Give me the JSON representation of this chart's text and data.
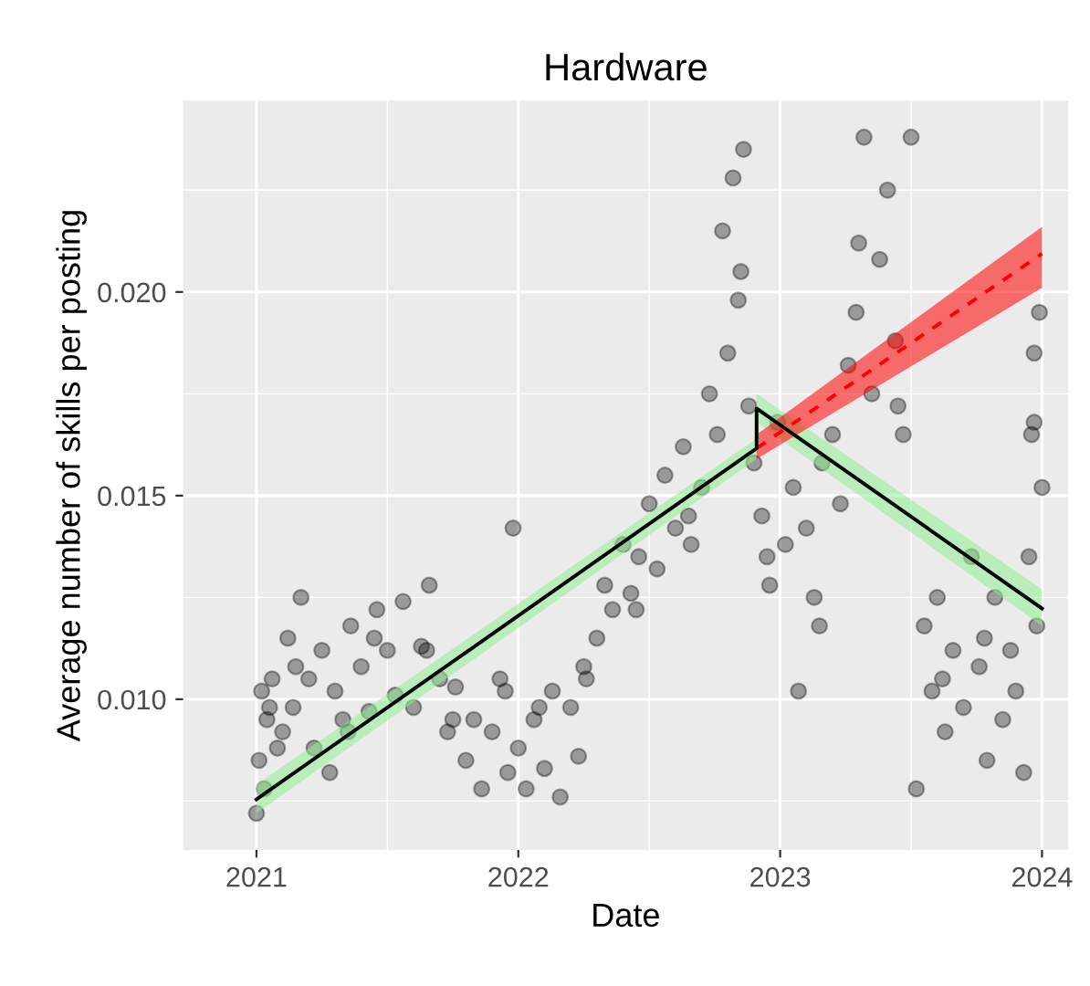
{
  "chart_data": {
    "type": "scatter",
    "title": "Hardware",
    "xlabel": "Date",
    "ylabel": "Average number of skills per posting",
    "xlim": [
      2020.72,
      2024.1
    ],
    "ylim": [
      0.0063,
      0.0247
    ],
    "xticks": [
      2021,
      2022,
      2023,
      2024
    ],
    "yticks": [
      {
        "value": 0.01,
        "label": "0.010"
      },
      {
        "value": 0.015,
        "label": "0.015"
      },
      {
        "value": 0.02,
        "label": "0.020"
      }
    ],
    "grid": true,
    "legend": false,
    "series": [
      {
        "marker": "circle",
        "color": "#000000",
        "x": [
          2021.0,
          2021.01,
          2021.02,
          2021.03,
          2021.04,
          2021.06,
          2021.08,
          2021.1,
          2021.12,
          2021.14,
          2021.17,
          2021.2,
          2021.22,
          2021.25,
          2021.28,
          2021.3,
          2021.33,
          2021.36,
          2021.4,
          2021.43,
          2021.46,
          2021.5,
          2021.53,
          2021.56,
          2021.6,
          2021.63,
          2021.66,
          2021.7,
          2021.73,
          2021.76,
          2021.8,
          2021.83,
          2021.86,
          2021.9,
          2021.93,
          2021.96,
          2021.98,
          2022.0,
          2022.03,
          2022.06,
          2022.1,
          2022.13,
          2022.16,
          2022.2,
          2022.23,
          2022.26,
          2022.3,
          2022.33,
          2022.36,
          2022.4,
          2022.43,
          2022.46,
          2022.5,
          2022.53,
          2022.56,
          2022.6,
          2022.63,
          2022.66,
          2022.7,
          2022.73,
          2022.76,
          2022.78,
          2022.8,
          2022.82,
          2022.84,
          2022.86,
          2022.88,
          2022.9,
          2022.93,
          2022.96,
          2022.99,
          2023.02,
          2023.05,
          2023.07,
          2023.1,
          2023.13,
          2023.16,
          2023.2,
          2023.23,
          2023.26,
          2023.29,
          2023.32,
          2023.35,
          2023.38,
          2023.41,
          2023.44,
          2023.47,
          2023.5,
          2023.52,
          2023.55,
          2023.58,
          2023.6,
          2023.63,
          2023.66,
          2023.7,
          2023.73,
          2023.76,
          2023.79,
          2023.82,
          2023.85,
          2023.88,
          2023.9,
          2023.93,
          2023.95,
          2023.96,
          2023.97,
          2023.98,
          2023.99,
          2024.0,
          2021.05,
          2021.15,
          2021.35,
          2021.45,
          2021.65,
          2021.75,
          2021.95,
          2022.08,
          2022.25,
          2022.45,
          2022.65,
          2022.85,
          2022.95,
          2023.15,
          2023.3,
          2023.45,
          2023.62,
          2023.78,
          2023.97
        ],
        "values": [
          0.0072,
          0.0085,
          0.0102,
          0.0078,
          0.0095,
          0.0105,
          0.0088,
          0.0092,
          0.0115,
          0.0098,
          0.0125,
          0.0105,
          0.0088,
          0.0112,
          0.0082,
          0.0102,
          0.0095,
          0.0118,
          0.0108,
          0.0097,
          0.0122,
          0.0112,
          0.0101,
          0.0124,
          0.0098,
          0.0113,
          0.0128,
          0.0105,
          0.0092,
          0.0103,
          0.0085,
          0.0095,
          0.0078,
          0.0092,
          0.0105,
          0.0082,
          0.0142,
          0.0088,
          0.0078,
          0.0095,
          0.0083,
          0.0102,
          0.0076,
          0.0098,
          0.0086,
          0.0105,
          0.0115,
          0.0128,
          0.0122,
          0.0138,
          0.0126,
          0.0135,
          0.0148,
          0.0132,
          0.0155,
          0.0142,
          0.0162,
          0.0138,
          0.0152,
          0.0175,
          0.0165,
          0.0215,
          0.0185,
          0.0228,
          0.0198,
          0.0235,
          0.0172,
          0.0158,
          0.0145,
          0.0128,
          0.0168,
          0.0138,
          0.0152,
          0.0102,
          0.0142,
          0.0125,
          0.0158,
          0.0165,
          0.0148,
          0.0182,
          0.0195,
          0.0238,
          0.0175,
          0.0208,
          0.0225,
          0.0188,
          0.0165,
          0.0238,
          0.0078,
          0.0118,
          0.0102,
          0.0125,
          0.0092,
          0.0112,
          0.0098,
          0.0135,
          0.0108,
          0.0085,
          0.0125,
          0.0095,
          0.0112,
          0.0102,
          0.0082,
          0.0135,
          0.0165,
          0.0185,
          0.0118,
          0.0195,
          0.0152,
          0.0098,
          0.0108,
          0.0092,
          0.0115,
          0.0112,
          0.0095,
          0.0102,
          0.0098,
          0.0108,
          0.0122,
          0.0145,
          0.0205,
          0.0135,
          0.0118,
          0.0212,
          0.0172,
          0.0105,
          0.0115,
          0.0168
        ]
      },
      {
        "type": "line",
        "marker": "none",
        "color": "#90ee90",
        "x": [
          2021.0,
          2022.91,
          2022.91,
          2024.0
        ],
        "values": [
          0.00754,
          0.01616,
          0.01714,
          0.01223
        ],
        "lower": [
          0.0072,
          0.0159,
          0.0168,
          0.0118
        ],
        "upper": [
          0.0079,
          0.0164,
          0.0175,
          0.0127
        ]
      },
      {
        "type": "line",
        "marker": "none",
        "color": "#ff0000",
        "line_style": "dashed",
        "x": [
          2022.91,
          2024.0
        ],
        "values": [
          0.01616,
          0.02094
        ],
        "lower": [
          0.0159,
          0.0201
        ],
        "upper": [
          0.0165,
          0.0216
        ]
      },
      {
        "type": "line",
        "marker": "none",
        "color": "#000000",
        "x": [
          2021.0,
          2022.91,
          2022.91,
          2024.0
        ],
        "values": [
          0.00754,
          0.01616,
          0.01714,
          0.01223
        ]
      }
    ]
  }
}
